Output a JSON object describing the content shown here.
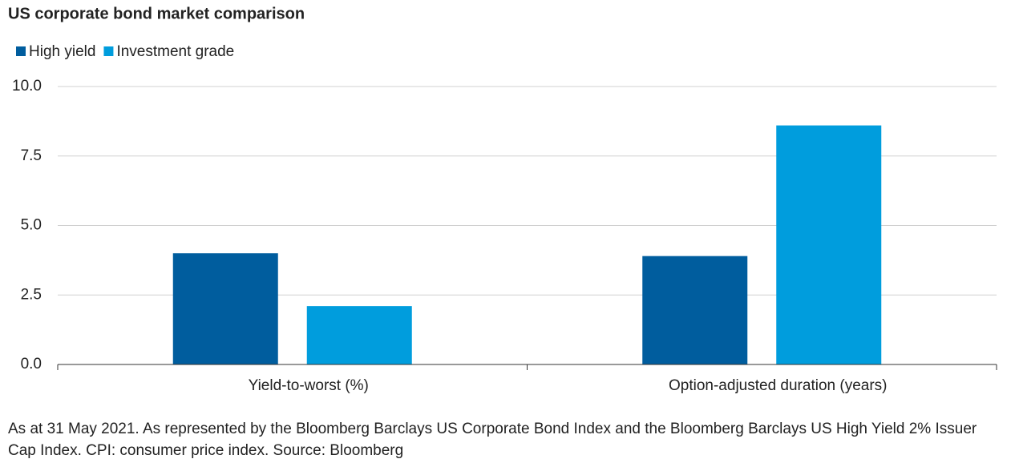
{
  "chart_data": {
    "type": "bar",
    "title": "US corporate bond market comparison",
    "categories": [
      "Yield-to-worst (%)",
      "Option-adjusted duration (years)"
    ],
    "series": [
      {
        "name": "High yield",
        "color": "#005d9e",
        "values": [
          4.0,
          3.9
        ]
      },
      {
        "name": "Investment grade",
        "color": "#009ddd",
        "values": [
          2.1,
          8.6
        ]
      }
    ],
    "ylim": [
      0,
      10
    ],
    "yticks": [
      {
        "value": 0,
        "label": "0.0"
      },
      2.5,
      {
        "value": 5,
        "label": "5.0"
      },
      7.5,
      {
        "value": 10,
        "label": "10.0"
      }
    ],
    "grid": true,
    "footnote": "As at 31 May 2021. As represented by the Bloomberg Barclays US Corporate Bond Index and the Bloomberg Barclays US High Yield 2% Issuer Cap Index. CPI: consumer price index. Source: Bloomberg"
  }
}
